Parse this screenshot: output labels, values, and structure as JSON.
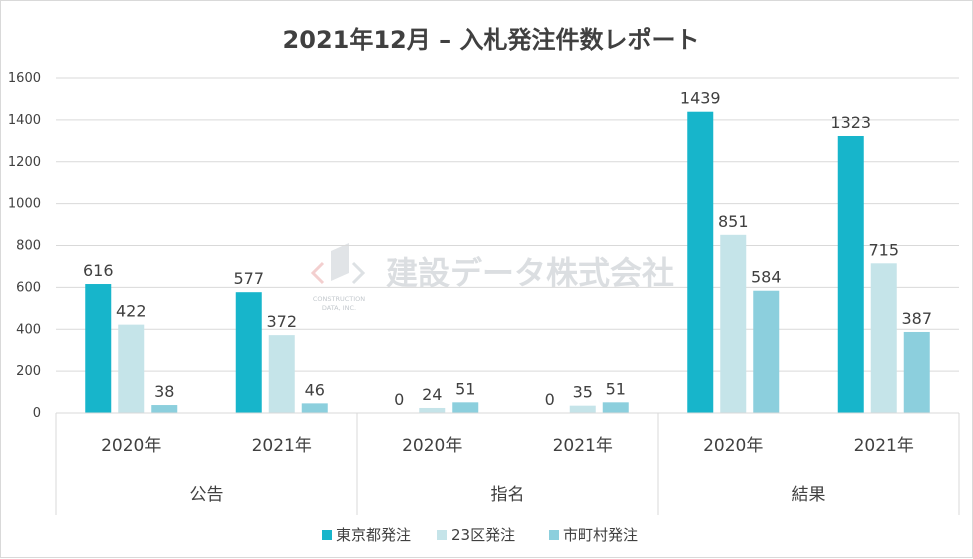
{
  "chart_data": {
    "type": "bar",
    "title": "2021年12月 – 入札発注件数レポート",
    "groups": [
      "公告",
      "指名",
      "結果"
    ],
    "categories": [
      "2020年",
      "2021年",
      "2020年",
      "2021年",
      "2020年",
      "2021年"
    ],
    "series": [
      {
        "name": "東京都発注",
        "color": "#17b5cb",
        "values": [
          616,
          577,
          0,
          0,
          1439,
          1323
        ]
      },
      {
        "name": "23区発注",
        "color": "#c5e4e9",
        "values": [
          422,
          372,
          24,
          35,
          851,
          715
        ]
      },
      {
        "name": "市町村発注",
        "color": "#8ccfdd",
        "values": [
          38,
          46,
          51,
          51,
          584,
          387
        ]
      }
    ],
    "ylim": [
      0,
      1600
    ],
    "yticks": [
      0,
      200,
      400,
      600,
      800,
      1000,
      1200,
      1400,
      1600
    ],
    "grid": true,
    "data_labels": true,
    "legend_position": "bottom"
  },
  "watermark": {
    "company": "建設データ株式会社",
    "line1": "CONSTRUCTION",
    "line2": "DATA, INC."
  }
}
